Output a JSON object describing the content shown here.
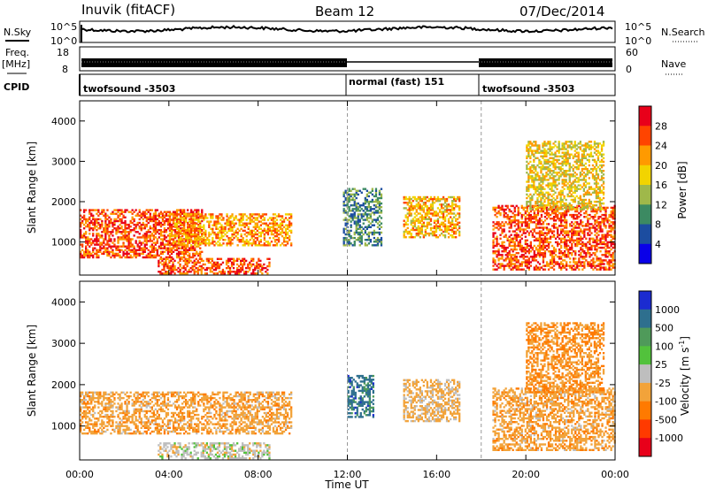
{
  "header": {
    "station": "Inuvik (fitACF)",
    "beam": "Beam 12",
    "date": "07/Dec/2014"
  },
  "status_panels": {
    "nsky_label": "N.Sky",
    "nsearch_label": "N.Search",
    "nsky_ticks": [
      "10^5",
      "10^0"
    ],
    "nsearch_ticks": [
      "10^5",
      "10^0"
    ],
    "freq_label": "Freq.",
    "freq_unit": "[MHz]",
    "freq_ticks": [
      "18",
      "8"
    ],
    "nave_label": "Nave",
    "nave_ticks": [
      "60",
      "0"
    ],
    "cpid_label": "CPID",
    "cpid_segments": [
      {
        "label": "twofsound -3503",
        "start_h": 0,
        "end_h": 12
      },
      {
        "label": "normal (fast) 151",
        "start_h": 12,
        "end_h": 18
      },
      {
        "label": "twofsound -3503",
        "start_h": 18,
        "end_h": 24
      }
    ]
  },
  "chart_data": [
    {
      "type": "heatmap",
      "name": "power",
      "ylabel": "Slant Range [km]",
      "xlabel": "Time UT",
      "xlim": [
        0,
        24
      ],
      "ylim": [
        180,
        4500
      ],
      "yticks": [
        "1000",
        "2000",
        "3000",
        "4000"
      ],
      "xticks": [
        "00:00",
        "04:00",
        "08:00",
        "12:00",
        "16:00",
        "20:00",
        "00:00"
      ],
      "colorbar": {
        "label": "Power [dB]",
        "ticks": [
          "28",
          "24",
          "20",
          "16",
          "12",
          "8",
          "4"
        ],
        "colors": [
          "#e8001a",
          "#ff4400",
          "#ff9a00",
          "#f2d400",
          "#9fb84a",
          "#3c8a62",
          "#1c4da0",
          "#0a00e8"
        ]
      },
      "regions": [
        {
          "t0": 0.0,
          "t1": 5.5,
          "r0": 600,
          "r1": 1800,
          "value": 28
        },
        {
          "t0": 4.0,
          "t1": 9.5,
          "r0": 900,
          "r1": 1700,
          "value": 24
        },
        {
          "t0": 3.5,
          "t1": 8.5,
          "r0": 200,
          "r1": 600,
          "value": 28
        },
        {
          "t0": 11.8,
          "t1": 13.5,
          "r0": 900,
          "r1": 2300,
          "value": 12
        },
        {
          "t0": 14.5,
          "t1": 17.0,
          "r0": 1100,
          "r1": 2100,
          "value": 22
        },
        {
          "t0": 18.5,
          "t1": 24.0,
          "r0": 300,
          "r1": 1900,
          "value": 28
        },
        {
          "t0": 20.0,
          "t1": 23.5,
          "r0": 1800,
          "r1": 3500,
          "value": 20
        }
      ]
    },
    {
      "type": "heatmap",
      "name": "velocity",
      "ylabel": "Slant Range [km]",
      "xlabel": "Time UT",
      "xlim": [
        0,
        24
      ],
      "ylim": [
        180,
        4500
      ],
      "yticks": [
        "1000",
        "2000",
        "3000",
        "4000"
      ],
      "xticks": [
        "00:00",
        "04:00",
        "08:00",
        "12:00",
        "16:00",
        "20:00",
        "00:00"
      ],
      "colorbar": {
        "label": "Velocity [m s",
        "label_sup": "-1",
        "label_end": "]",
        "ticks": [
          "1000",
          "500",
          "100",
          "25",
          "-25",
          "-100",
          "-500",
          "-1000"
        ],
        "colors": [
          "#1b2bd0",
          "#2e6f8e",
          "#4f9a5a",
          "#52c23c",
          "#bebebe",
          "#f2a33a",
          "#ff7a00",
          "#ff3a00",
          "#e8001a"
        ]
      },
      "regions": [
        {
          "t0": 0.0,
          "t1": 9.5,
          "r0": 800,
          "r1": 1800,
          "value": -300
        },
        {
          "t0": 3.5,
          "t1": 8.5,
          "r0": 200,
          "r1": 600,
          "value": 0
        },
        {
          "t0": 12.0,
          "t1": 13.2,
          "r0": 1200,
          "r1": 2200,
          "value": 800
        },
        {
          "t0": 14.5,
          "t1": 17.0,
          "r0": 1100,
          "r1": 2100,
          "value": -200
        },
        {
          "t0": 18.5,
          "t1": 24.0,
          "r0": 400,
          "r1": 1900,
          "value": -300
        },
        {
          "t0": 20.0,
          "t1": 23.5,
          "r0": 1800,
          "r1": 3500,
          "value": -400
        }
      ]
    }
  ]
}
